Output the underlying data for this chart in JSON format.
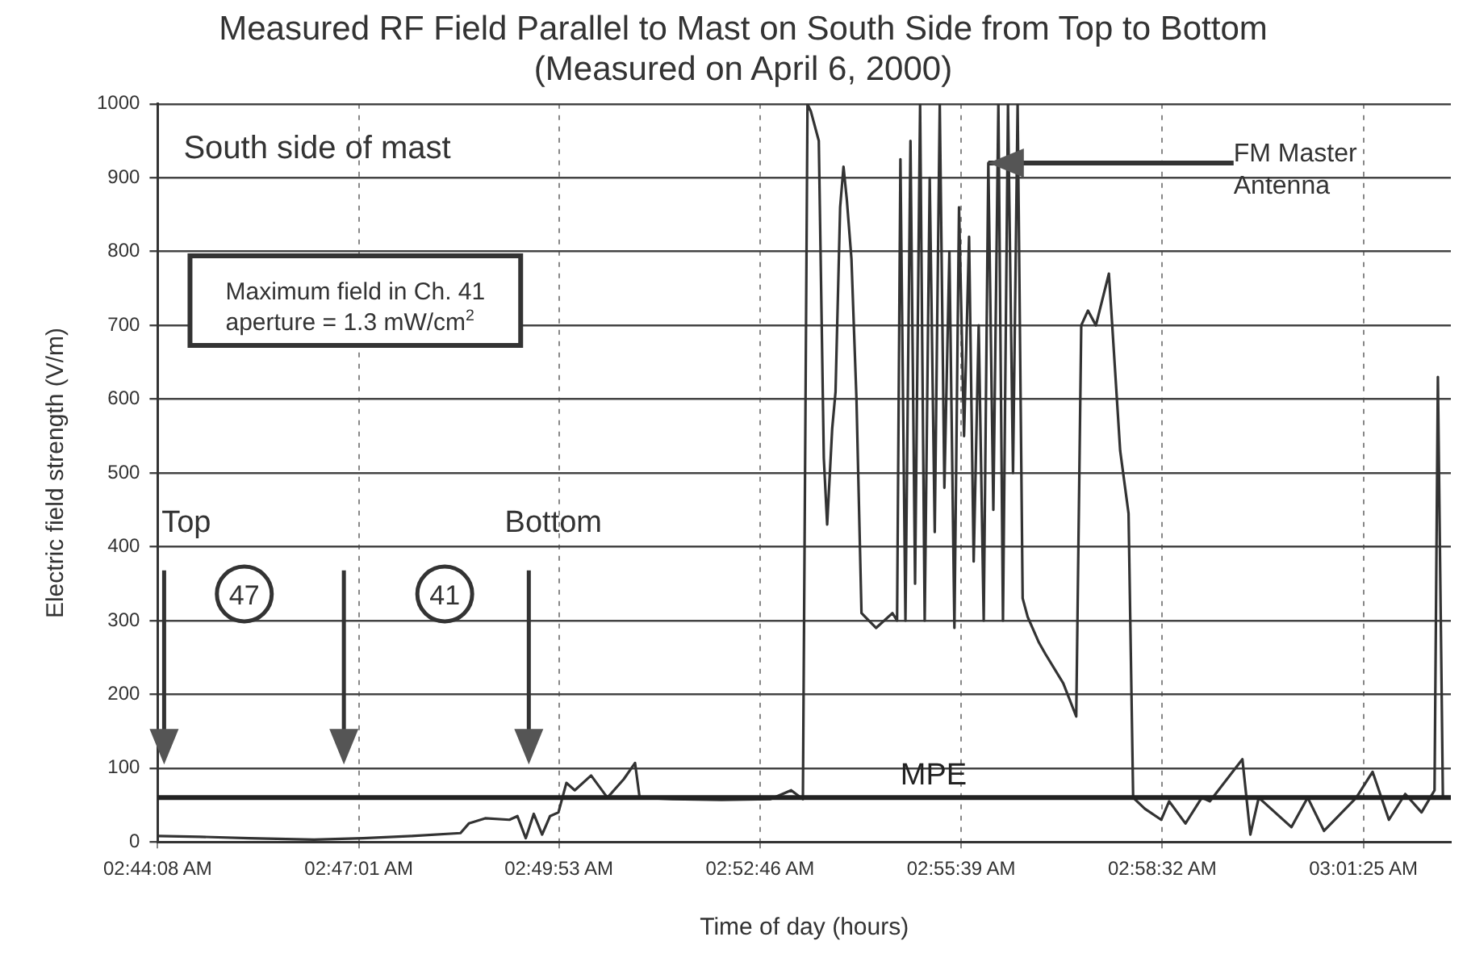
{
  "chart_data": {
    "type": "line",
    "title": "Measured RF Field Parallel to Mast on South Side from Top to Bottom (Measured on April 6, 2000)",
    "xlabel": "Time of day (hours)",
    "ylabel": "Electric field strength (V/m)",
    "x": [
      2.7356,
      2.7457,
      2.7574,
      2.7729,
      2.7846,
      2.7963,
      2.8079,
      2.8099,
      2.8138,
      2.8196,
      2.8215,
      2.8235,
      2.8254,
      2.8274,
      2.8293,
      2.8313,
      2.8332,
      2.8352,
      2.8391,
      2.843,
      2.8469,
      2.8496,
      2.8507,
      2.8585,
      2.8702,
      2.8819,
      2.8869,
      2.8897,
      2.8908,
      2.8916,
      2.8935,
      2.8947,
      2.8955,
      2.8967,
      2.8975,
      2.8986,
      2.8994,
      2.9002,
      2.9013,
      2.9025,
      2.9037,
      2.9072,
      2.9111,
      2.9122,
      2.913,
      2.9142,
      2.9154,
      2.9165,
      2.9177,
      2.9188,
      2.92,
      2.9212,
      2.9224,
      2.9235,
      2.9247,
      2.9259,
      2.927,
      2.9282,
      2.9294,
      2.9305,
      2.9317,
      2.9329,
      2.934,
      2.9352,
      2.9364,
      2.9375,
      2.9387,
      2.9399,
      2.941,
      2.9422,
      2.9434,
      2.9461,
      2.9476,
      2.9519,
      2.955,
      2.9562,
      2.9578,
      2.9597,
      2.9628,
      2.9636,
      2.9655,
      2.9675,
      2.9686,
      2.9714,
      2.9753,
      2.9772,
      2.9811,
      2.985,
      2.9869,
      2.9947,
      2.9966,
      2.9986,
      3.0064,
      3.0103,
      3.0142,
      3.0219,
      3.0258,
      3.0297,
      3.0336,
      3.0375,
      3.0406,
      3.0414,
      3.0426,
      3.0441
    ],
    "series": [
      {
        "color": "#333333",
        "values": [
          8,
          7,
          5,
          3,
          5,
          8,
          12,
          25,
          32,
          30,
          35,
          5,
          38,
          10,
          35,
          40,
          80,
          70,
          90,
          60,
          85,
          107,
          60,
          58,
          57,
          58,
          70,
          58,
          1000,
          990,
          950,
          520,
          430,
          560,
          610,
          860,
          915,
          870,
          790,
          600,
          310,
          290,
          310,
          300,
          925,
          300,
          950,
          350,
          1000,
          300,
          900,
          420,
          1000,
          480,
          800,
          290,
          860,
          550,
          820,
          380,
          700,
          300,
          920,
          450,
          1000,
          300,
          1000,
          500,
          1000,
          330,
          305,
          270,
          255,
          215,
          170,
          700,
          720,
          700,
          770,
          700,
          530,
          445,
          60,
          45,
          30,
          55,
          25,
          60,
          55,
          112,
          10,
          60,
          20,
          60,
          15,
          60,
          95,
          30,
          65,
          40,
          70,
          630,
          60,
          60
        ]
      }
    ],
    "xlim": [
      2.735556,
      3.0445
    ],
    "xticks": [
      {
        "value": 2.735556,
        "label": "02:44:08 AM"
      },
      {
        "value": 2.783611,
        "label": "02:47:01 AM"
      },
      {
        "value": 2.831389,
        "label": "02:49:53 AM"
      },
      {
        "value": 2.879444,
        "label": "02:52:46 AM"
      },
      {
        "value": 2.9275,
        "label": "02:55:39 AM"
      },
      {
        "value": 2.975556,
        "label": "02:58:32 AM"
      },
      {
        "value": 3.023611,
        "label": "03:01:25 AM"
      }
    ],
    "ylim": [
      0,
      1000
    ],
    "yticks": [
      0,
      100,
      200,
      300,
      400,
      500,
      600,
      700,
      800,
      900,
      1000
    ],
    "grid": true,
    "legend": false,
    "marker": "none",
    "line_style": "solid",
    "ref_lines": [
      {
        "axis": "y",
        "value": 60,
        "label": "MPE",
        "color": "#222222"
      }
    ],
    "annotations": [
      "South side of mast",
      "Maximum field in Ch. 41\naperture = 1.3 mW/cm$^{2}$",
      {
        "text": "FM Master\nAntenna",
        "x": 2.934,
        "y": 920
      },
      "Top",
      "47",
      "Bottom",
      "41"
    ]
  }
}
